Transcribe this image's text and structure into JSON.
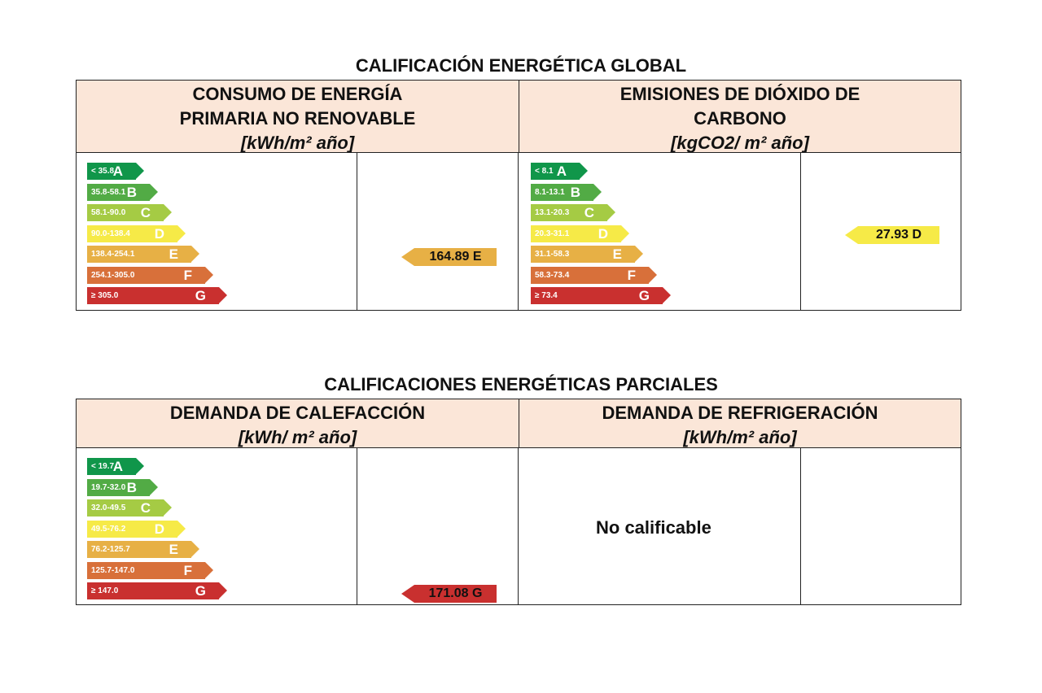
{
  "global": {
    "title": "CALIFICACIÓN ENERGÉTICA GLOBAL",
    "left": {
      "title_line1": "CONSUMO DE ENERGÍA",
      "title_line2": "PRIMARIA NO RENOVABLE",
      "unit": "[kWh/m² año]",
      "scale": [
        "< 35.8",
        "35.8-58.1",
        "58.1-90.0",
        "90.0-138.4",
        "138.4-254.1",
        "254.1-305.0",
        "≥ 305.0"
      ],
      "result": "164.89 E",
      "result_class": "E"
    },
    "right": {
      "title_line1": "EMISIONES DE DIÓXIDO DE",
      "title_line2": "CARBONO",
      "unit": "[kgCO2/ m² año]",
      "scale": [
        "< 8.1",
        "8.1-13.1",
        "13.1-20.3",
        "20.3-31.1",
        "31.1-58.3",
        "58.3-73.4",
        "≥ 73.4"
      ],
      "result": "27.93 D",
      "result_class": "D"
    }
  },
  "partial": {
    "title": "CALIFICACIONES ENERGÉTICAS PARCIALES",
    "left": {
      "title_line1": "DEMANDA DE CALEFACCIÓN",
      "unit": "[kWh/ m² año]",
      "scale": [
        "< 19.7",
        "19.7-32.0",
        "32.0-49.5",
        "49.5-76.2",
        "76.2-125.7",
        "125.7-147.0",
        "≥ 147.0"
      ],
      "result": "171.08 G",
      "result_class": "G"
    },
    "right": {
      "title_line1": "DEMANDA DE REFRIGERACIÓN",
      "unit": "[kWh/m² año]",
      "status": "No calificable"
    }
  },
  "letters": [
    "A",
    "B",
    "C",
    "D",
    "E",
    "F",
    "G"
  ],
  "colors": {
    "A": "#10964a",
    "B": "#52ab45",
    "C": "#a5cb44",
    "D": "#f6ea47",
    "E": "#e7b045",
    "F": "#d8703a",
    "G": "#c9302f",
    "header_bg": "#fbe6d8"
  }
}
